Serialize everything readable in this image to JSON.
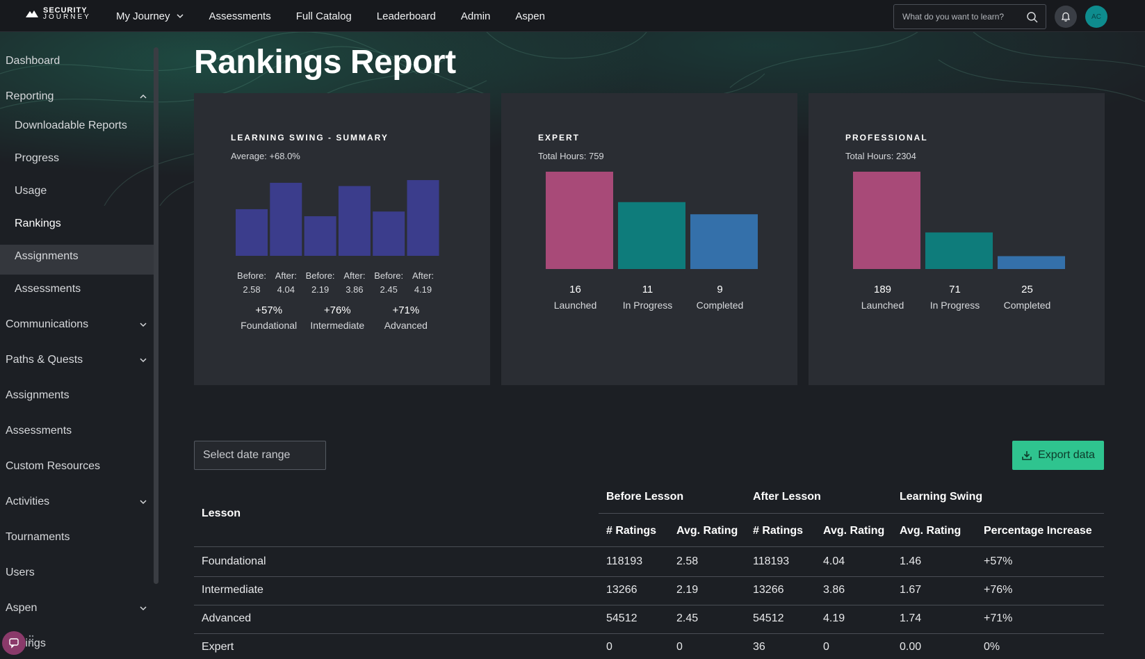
{
  "brand": {
    "line1": "SECURITY",
    "line2": "JOURNEY"
  },
  "nav": {
    "items": [
      {
        "label": "My Journey",
        "has_dropdown": true
      },
      {
        "label": "Assessments"
      },
      {
        "label": "Full Catalog"
      },
      {
        "label": "Leaderboard"
      },
      {
        "label": "Admin"
      },
      {
        "label": "Aspen"
      }
    ],
    "search_placeholder": "What do you want to learn?",
    "avatar_initials": "AC"
  },
  "sidebar": {
    "items": [
      {
        "label": "Dashboard"
      },
      {
        "label": "Reporting",
        "expanded": true
      },
      {
        "label": "Downloadable Reports",
        "sub": true
      },
      {
        "label": "Progress",
        "sub": true
      },
      {
        "label": "Usage",
        "sub": true
      },
      {
        "label": "Rankings",
        "sub": true,
        "active": true
      },
      {
        "label": "Assignments",
        "sub": true
      },
      {
        "label": "Assessments",
        "sub": true
      },
      {
        "label": "Communications",
        "collapsible": true
      },
      {
        "label": "Paths & Quests",
        "collapsible": true
      },
      {
        "label": "Assignments"
      },
      {
        "label": "Assessments"
      },
      {
        "label": "Custom Resources"
      },
      {
        "label": "Activities",
        "collapsible": true
      },
      {
        "label": "Tournaments"
      },
      {
        "label": "Users"
      },
      {
        "label": "Aspen",
        "collapsible": true
      },
      {
        "label": "Settings"
      }
    ]
  },
  "page": {
    "title": "Rankings Report"
  },
  "cards": {
    "learning_swing": {
      "title": "LEARNING SWING - SUMMARY",
      "subtitle": "Average: +68.0%",
      "bar_labels": [
        {
          "top": "Before:",
          "bottom": "2.58"
        },
        {
          "top": "After:",
          "bottom": "4.04"
        },
        {
          "top": "Before:",
          "bottom": "2.19"
        },
        {
          "top": "After:",
          "bottom": "3.86"
        },
        {
          "top": "Before:",
          "bottom": "2.45"
        },
        {
          "top": "After:",
          "bottom": "4.19"
        }
      ],
      "groups": [
        {
          "pct": "+57%",
          "name": "Foundational"
        },
        {
          "pct": "+76%",
          "name": "Intermediate"
        },
        {
          "pct": "+71%",
          "name": "Advanced"
        }
      ]
    },
    "expert": {
      "title": "EXPERT",
      "subtitle": "Total Hours: 759",
      "stats": [
        {
          "value": "16",
          "label": "Launched"
        },
        {
          "value": "11",
          "label": "In Progress"
        },
        {
          "value": "9",
          "label": "Completed"
        }
      ]
    },
    "professional": {
      "title": "PROFESSIONAL",
      "subtitle": "Total Hours: 2304",
      "stats": [
        {
          "value": "189",
          "label": "Launched"
        },
        {
          "value": "71",
          "label": "In Progress"
        },
        {
          "value": "25",
          "label": "Completed"
        }
      ]
    }
  },
  "colors": {
    "swing_bar": "#3b3d8c",
    "launched": "#a84a78",
    "in_progress": "#0e7c7b",
    "completed": "#3470aa",
    "export": "#2fc48f"
  },
  "chart_data": [
    {
      "type": "bar",
      "title": "LEARNING SWING - SUMMARY",
      "categories": [
        "Foundational Before",
        "Foundational After",
        "Intermediate Before",
        "Intermediate After",
        "Advanced Before",
        "Advanced After"
      ],
      "values": [
        2.58,
        4.04,
        2.19,
        3.86,
        2.45,
        4.19
      ],
      "ylim": [
        0,
        5
      ]
    },
    {
      "type": "bar",
      "title": "EXPERT",
      "categories": [
        "Launched",
        "In Progress",
        "Completed"
      ],
      "values": [
        16,
        11,
        9
      ],
      "ylim": [
        0,
        16
      ]
    },
    {
      "type": "bar",
      "title": "PROFESSIONAL",
      "categories": [
        "Launched",
        "In Progress",
        "Completed"
      ],
      "values": [
        189,
        71,
        25
      ],
      "ylim": [
        0,
        189
      ]
    }
  ],
  "controls": {
    "date_range_placeholder": "Select date range",
    "export_label": "Export data"
  },
  "table": {
    "lesson_header": "Lesson",
    "group_headers": [
      "Before Lesson",
      "After Lesson",
      "Learning Swing"
    ],
    "sub_headers": [
      "# Ratings",
      "Avg. Rating",
      "# Ratings",
      "Avg. Rating",
      "Avg. Rating",
      "Percentage Increase"
    ],
    "rows": [
      {
        "lesson": "Foundational",
        "cells": [
          "118193",
          "2.58",
          "118193",
          "4.04",
          "1.46",
          "+57%"
        ]
      },
      {
        "lesson": "Intermediate",
        "cells": [
          "13266",
          "2.19",
          "13266",
          "3.86",
          "1.67",
          "+76%"
        ]
      },
      {
        "lesson": "Advanced",
        "cells": [
          "54512",
          "2.45",
          "54512",
          "4.19",
          "1.74",
          "+71%"
        ]
      },
      {
        "lesson": "Expert",
        "cells": [
          "0",
          "0",
          "36",
          "0",
          "0.00",
          "0%"
        ]
      }
    ]
  }
}
